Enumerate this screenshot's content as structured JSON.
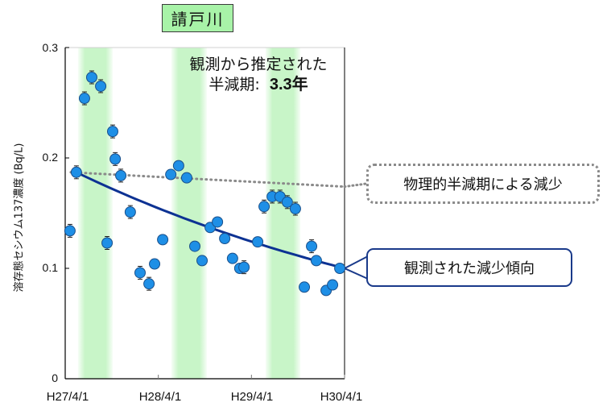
{
  "title": "請戸川",
  "annotation": {
    "line1": "観測から推定された",
    "line2_label": "半減期:",
    "line2_value": "3.3年"
  },
  "callouts": {
    "physical": "物理的半減期による減少",
    "observed": "観測された減少傾向"
  },
  "axes": {
    "ylabel": "溶存態セシウム137濃度 (Bq/L)",
    "yticks": [
      "0.3",
      "0.2",
      "0.1",
      "0"
    ],
    "xticks": [
      "H27/4/1",
      "H28/4/1",
      "H29/4/1",
      "H30/4/1"
    ]
  },
  "colors": {
    "marker": "#1e8fe6",
    "marker_edge": "#1a4f8a",
    "trend": "#0d3293",
    "physical": "#8a8a8a",
    "band": "#c8f5c8",
    "title_fill": "#a8f3a8"
  },
  "chart_data": {
    "type": "scatter",
    "title": "請戸川",
    "xlabel": "",
    "ylabel": "溶存態セシウム137濃度 (Bq/L)",
    "ylim": [
      0,
      0.3
    ],
    "xlim": [
      "H27/4/1",
      "H30/4/1"
    ],
    "x_tick_labels": [
      "H27/4/1",
      "H28/4/1",
      "H29/4/1",
      "H30/4/1"
    ],
    "y_tick_labels": [
      "0",
      "0.1",
      "0.2",
      "0.3"
    ],
    "grid": false,
    "shaded_bands_fraction": [
      [
        0.046,
        0.17
      ],
      [
        0.38,
        0.507
      ],
      [
        0.717,
        0.842
      ]
    ],
    "points_fraction_x_value_y": [
      [
        0.017,
        0.134
      ],
      [
        0.04,
        0.187
      ],
      [
        0.069,
        0.254
      ],
      [
        0.095,
        0.273
      ],
      [
        0.127,
        0.265
      ],
      [
        0.15,
        0.123
      ],
      [
        0.17,
        0.224
      ],
      [
        0.179,
        0.199
      ],
      [
        0.199,
        0.184
      ],
      [
        0.233,
        0.151
      ],
      [
        0.268,
        0.096
      ],
      [
        0.3,
        0.086
      ],
      [
        0.32,
        0.104
      ],
      [
        0.349,
        0.126
      ],
      [
        0.378,
        0.185
      ],
      [
        0.406,
        0.193
      ],
      [
        0.435,
        0.182
      ],
      [
        0.464,
        0.12
      ],
      [
        0.49,
        0.107
      ],
      [
        0.519,
        0.137
      ],
      [
        0.545,
        0.142
      ],
      [
        0.571,
        0.127
      ],
      [
        0.599,
        0.109
      ],
      [
        0.625,
        0.1
      ],
      [
        0.64,
        0.101
      ],
      [
        0.689,
        0.124
      ],
      [
        0.712,
        0.156
      ],
      [
        0.741,
        0.165
      ],
      [
        0.769,
        0.165
      ],
      [
        0.795,
        0.16
      ],
      [
        0.824,
        0.154
      ],
      [
        0.856,
        0.083
      ],
      [
        0.882,
        0.12
      ],
      [
        0.899,
        0.107
      ],
      [
        0.934,
        0.08
      ],
      [
        0.957,
        0.085
      ],
      [
        0.983,
        0.1
      ]
    ],
    "series": [
      {
        "name": "観測された減少傾向 (fit, half-life 3.3 yr)",
        "type": "line",
        "start": 0.187,
        "end": 0.1
      },
      {
        "name": "物理的半減期による減少",
        "type": "dotted line",
        "start": 0.187,
        "end": 0.174
      }
    ],
    "annotations": [
      "観測から推定された 半減期: 3.3年",
      "物理的半減期による減少",
      "観測された減少傾向"
    ]
  }
}
